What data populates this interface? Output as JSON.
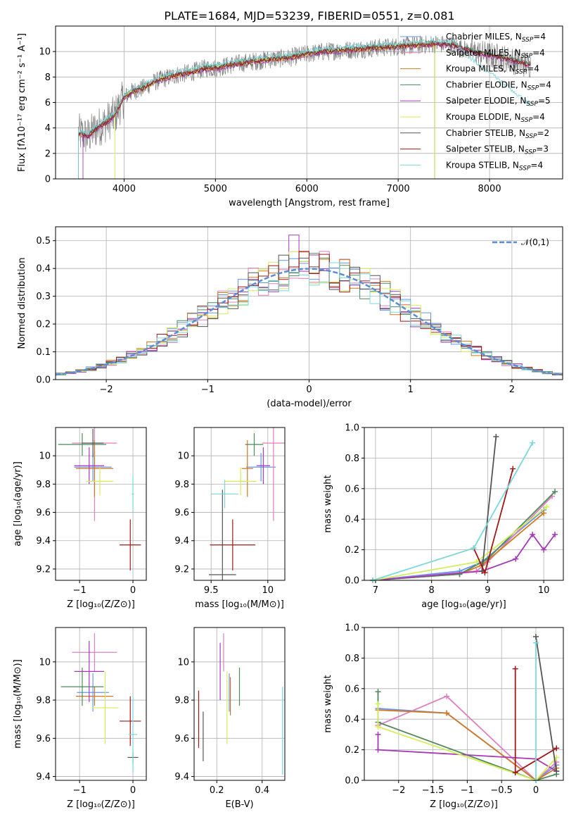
{
  "title": "PLATE=1684, MJD=53239, FIBERID=0551, z=0.081",
  "colors": [
    "#6495ed",
    "#e07fc0",
    "#d2771f",
    "#4e8a5a",
    "#a43ab8",
    "#d4ee5a",
    "#555555",
    "#a01818",
    "#7ad8da"
  ],
  "chart_data": [
    {
      "type": "line",
      "xlabel": "wavelength [Angstrom, rest frame]",
      "ylabel": "Flux [fλ10⁻¹⁷ erg cm⁻² s⁻¹ A⁻¹]",
      "xlim": [
        3250,
        8800
      ],
      "ylim": [
        0,
        12
      ],
      "xticks": [
        4000,
        5000,
        6000,
        7000,
        8000
      ],
      "yticks": [
        0,
        2,
        4,
        6,
        8,
        10
      ],
      "spectrum": {
        "x": [
          3500,
          3600,
          3700,
          3800,
          3900,
          4000,
          4100,
          4200,
          4300,
          4400,
          4500,
          4600,
          4700,
          4800,
          4900,
          5000,
          5200,
          5400,
          5600,
          5800,
          6000,
          6200,
          6400,
          6600,
          6800,
          7000,
          7200,
          7400,
          7600,
          7800,
          8000,
          8200,
          8400
        ],
        "y": [
          3.6,
          3.3,
          4.0,
          4.4,
          5.0,
          6.4,
          6.9,
          7.1,
          7.5,
          7.8,
          8.0,
          8.2,
          8.3,
          8.5,
          8.7,
          8.7,
          9.0,
          9.2,
          9.4,
          9.5,
          9.8,
          10.0,
          10.1,
          10.2,
          10.3,
          10.4,
          10.5,
          10.6,
          10.5,
          10.0,
          9.7,
          9.4,
          9.0
        ]
      },
      "series": [
        {
          "name": "Chabrier MILES, N_SSP=4",
          "label_main": "Chabrier MILES, N",
          "label_sub": "SSP",
          "label_end": "=4"
        },
        {
          "name": "Salpeter MILES, N_SSP=4",
          "label_main": "Salpeter MILES, N",
          "label_sub": "SSP",
          "label_end": "=4"
        },
        {
          "name": "Kroupa MILES, N_SSP=4",
          "label_main": "Kroupa MILES, N",
          "label_sub": "SSP",
          "label_end": "=4"
        },
        {
          "name": "Chabrier ELODIE, N_SSP=4",
          "label_main": "Chabrier ELODIE, N",
          "label_sub": "SSP",
          "label_end": "=4"
        },
        {
          "name": "Salpeter ELODIE, N_SSP=5",
          "label_main": "Salpeter ELODIE, N",
          "label_sub": "SSP",
          "label_end": "=5"
        },
        {
          "name": "Kroupa ELODIE, N_SSP=4",
          "label_main": "Kroupa ELODIE, N",
          "label_sub": "SSP",
          "label_end": "=4"
        },
        {
          "name": "Chabrier STELIB, N_SSP=2",
          "label_main": "Chabrier STELIB, N",
          "label_sub": "SSP",
          "label_end": "=2"
        },
        {
          "name": "Salpeter STELIB, N_SSP=3",
          "label_main": "Salpeter STELIB, N",
          "label_sub": "SSP",
          "label_end": "=3"
        },
        {
          "name": "Kroupa STELIB, N_SSP=4",
          "label_main": "Kroupa STELIB, N",
          "label_sub": "SSP",
          "label_end": "=4"
        }
      ]
    },
    {
      "type": "step",
      "xlabel": "(data-model)/error",
      "ylabel": "Normed distribution",
      "xlim": [
        -2.5,
        2.5
      ],
      "ylim": [
        0,
        0.55
      ],
      "xticks": [
        -2,
        -1,
        0,
        1,
        2
      ],
      "yticks": [
        0.0,
        0.1,
        0.2,
        0.3,
        0.4,
        0.5
      ],
      "legend": "𝒩(0,1)",
      "bin_width": 0.1
    },
    {
      "type": "errorbar",
      "xlabel": "Z [log₁₀(Z/Z⊙)]",
      "ylabel": "age  [log₁₀(age/yr)]",
      "xlim": [
        -1.45,
        0.25
      ],
      "ylim": [
        9.12,
        10.2
      ],
      "xticks": [
        -1,
        0
      ],
      "yticks": [
        9.2,
        9.4,
        9.6,
        9.8,
        10.0
      ],
      "points": [
        {
          "x": -0.75,
          "xerr": 0.35,
          "y": 9.92,
          "yerr": 0.1
        },
        {
          "x": -0.72,
          "xerr": 0.42,
          "y": 10.09,
          "yerr": 0.55
        },
        {
          "x": -0.72,
          "xerr": 0.35,
          "y": 9.91,
          "yerr": 0.2
        },
        {
          "x": -0.95,
          "xerr": 0.45,
          "y": 10.08,
          "yerr": 0.08
        },
        {
          "x": -0.82,
          "xerr": 0.28,
          "y": 9.93,
          "yerr": 0.13
        },
        {
          "x": -0.62,
          "xerr": 0.25,
          "y": 9.82,
          "yerr": 0.1
        },
        {
          "x": -0.75,
          "xerr": 0.2,
          "y": 10.09,
          "yerr": 0.1
        },
        {
          "x": -0.05,
          "xerr": 0.2,
          "y": 9.37,
          "yerr": 0.18
        },
        {
          "x": 0.0,
          "xerr": 0.02,
          "y": 9.73,
          "yerr": 0.13
        }
      ]
    },
    {
      "type": "errorbar",
      "xlabel": "mass [log₁₀(M/M⊙)]",
      "ylabel": "",
      "xlim": [
        9.35,
        10.15
      ],
      "ylim": [
        9.12,
        10.2
      ],
      "xticks": [
        9.5,
        10.0
      ],
      "yticks": [
        9.2,
        9.4,
        9.6,
        9.8,
        10.0
      ],
      "points": [
        {
          "x": 9.94,
          "xerr": 0.13,
          "y": 9.92,
          "yerr": 0.1
        },
        {
          "x": 10.05,
          "xerr": 0.1,
          "y": 10.09,
          "yerr": 0.55
        },
        {
          "x": 9.82,
          "xerr": 0.05,
          "y": 9.91,
          "yerr": 0.2
        },
        {
          "x": 9.88,
          "xerr": 0.08,
          "y": 10.08,
          "yerr": 0.08
        },
        {
          "x": 9.96,
          "xerr": 0.06,
          "y": 9.93,
          "yerr": 0.13
        },
        {
          "x": 9.76,
          "xerr": 0.14,
          "y": 9.82,
          "yerr": 0.1
        },
        {
          "x": 9.6,
          "xerr": 0.12,
          "y": 9.16,
          "yerr": 0.6
        },
        {
          "x": 9.69,
          "xerr": 0.2,
          "y": 9.37,
          "yerr": 0.18
        },
        {
          "x": 9.62,
          "xerr": 0.12,
          "y": 9.73,
          "yerr": 0.1
        }
      ]
    },
    {
      "type": "line",
      "xlabel": "age  [log₁₀(age/yr)]",
      "ylabel": "mass weight",
      "xlim": [
        6.8,
        10.35
      ],
      "ylim": [
        0,
        1
      ],
      "xticks": [
        7,
        8,
        9,
        10
      ],
      "yticks": [
        0.0,
        0.2,
        0.4,
        0.6,
        0.8,
        1.0
      ],
      "series": [
        {
          "x": [
            6.95,
            8.5,
            8.9,
            10.0
          ],
          "y": [
            0.0,
            0.06,
            0.12,
            0.46
          ]
        },
        {
          "x": [
            6.95,
            8.8,
            9.0,
            10.15
          ],
          "y": [
            0.0,
            0.06,
            0.12,
            0.55
          ]
        },
        {
          "x": [
            6.95,
            8.5,
            8.9,
            10.0
          ],
          "y": [
            0.0,
            0.04,
            0.1,
            0.44
          ]
        },
        {
          "x": [
            6.95,
            8.5,
            9.0,
            10.2
          ],
          "y": [
            0.0,
            0.04,
            0.14,
            0.58
          ]
        },
        {
          "x": [
            6.95,
            8.9,
            9.5,
            9.8,
            10.0,
            10.2
          ],
          "y": [
            0.0,
            0.06,
            0.14,
            0.3,
            0.2,
            0.3
          ]
        },
        {
          "x": [
            6.95,
            8.8,
            10.05
          ],
          "y": [
            0.0,
            0.12,
            0.48
          ]
        },
        {
          "x": [
            8.9,
            9.15
          ],
          "y": [
            0.06,
            0.94
          ]
        },
        {
          "x": [
            8.75,
            8.95,
            9.45
          ],
          "y": [
            0.21,
            0.05,
            0.73
          ]
        },
        {
          "x": [
            6.95,
            8.75,
            9.8
          ],
          "y": [
            0.0,
            0.21,
            0.9
          ]
        }
      ]
    },
    {
      "type": "errorbar",
      "xlabel": "Z [log₁₀(Z/Z⊙)]",
      "ylabel": "mass [log₁₀(M/M⊙)]",
      "xlim": [
        -1.45,
        0.25
      ],
      "ylim": [
        9.38,
        10.18
      ],
      "xticks": [
        -1,
        0
      ],
      "yticks": [
        9.4,
        9.6,
        9.8,
        10.0
      ],
      "points": [
        {
          "x": -0.75,
          "xerr": 0.3,
          "y": 9.84,
          "yerr": 0.1
        },
        {
          "x": -0.72,
          "xerr": 0.42,
          "y": 10.05,
          "yerr": 0.1
        },
        {
          "x": -0.72,
          "xerr": 0.35,
          "y": 9.82,
          "yerr": 0.05
        },
        {
          "x": -0.95,
          "xerr": 0.4,
          "y": 9.87,
          "yerr": 0.1
        },
        {
          "x": -0.82,
          "xerr": 0.28,
          "y": 9.95,
          "yerr": 0.16
        },
        {
          "x": -0.52,
          "xerr": 0.25,
          "y": 9.76,
          "yerr": 0.19
        },
        {
          "x": 0.0,
          "xerr": 0.1,
          "y": 9.5,
          "yerr": 0.03
        },
        {
          "x": -0.05,
          "xerr": 0.2,
          "y": 9.69,
          "yerr": 0.13
        },
        {
          "x": 0.0,
          "xerr": 0.08,
          "y": 9.62,
          "yerr": 0.2
        }
      ]
    },
    {
      "type": "errorbar",
      "xlabel": "E(B-V)",
      "ylabel": "",
      "xlim": [
        0.1,
        0.5
      ],
      "ylim": [
        9.38,
        10.18
      ],
      "xticks": [
        0.2,
        0.4
      ],
      "yticks": [
        9.4,
        9.6,
        9.8,
        10.0
      ],
      "points": [
        {
          "x": 0.255,
          "xerr": 0.0,
          "y": 9.84,
          "yerr": 0.1
        },
        {
          "x": 0.23,
          "xerr": 0.0,
          "y": 10.05,
          "yerr": 0.1
        },
        {
          "x": 0.26,
          "xerr": 0.0,
          "y": 9.82,
          "yerr": 0.1
        },
        {
          "x": 0.3,
          "xerr": 0.0,
          "y": 9.87,
          "yerr": 0.1
        },
        {
          "x": 0.215,
          "xerr": 0.0,
          "y": 9.95,
          "yerr": 0.15
        },
        {
          "x": 0.245,
          "xerr": 0.0,
          "y": 9.76,
          "yerr": 0.19
        },
        {
          "x": 0.14,
          "xerr": 0.0,
          "y": 9.61,
          "yerr": 0.13
        },
        {
          "x": 0.12,
          "xerr": 0.0,
          "y": 9.7,
          "yerr": 0.15
        },
        {
          "x": 0.49,
          "xerr": 0.0,
          "y": 9.64,
          "yerr": 0.23
        }
      ]
    },
    {
      "type": "line",
      "xlabel": "Z [log₁₀(Z/Z⊙)]",
      "ylabel": "mass weight",
      "xlim": [
        -2.5,
        0.4
      ],
      "ylim": [
        0,
        1
      ],
      "xticks": [
        -2.0,
        -1.5,
        -1.0,
        -0.5,
        0.0
      ],
      "yticks": [
        0.0,
        0.2,
        0.4,
        0.6,
        0.8,
        1.0
      ],
      "series": [
        {
          "x": [
            -2.3,
            -1.3,
            0.0,
            0.3
          ],
          "y": [
            0.47,
            0.44,
            0.0,
            0.1
          ]
        },
        {
          "x": [
            -2.3,
            -1.3,
            0.0,
            0.3
          ],
          "y": [
            0.36,
            0.55,
            0.0,
            0.12
          ]
        },
        {
          "x": [
            -2.3,
            -1.3,
            0.0,
            0.3
          ],
          "y": [
            0.46,
            0.44,
            0.0,
            0.08
          ]
        },
        {
          "x": [
            -2.3,
            -2.3,
            0.0,
            0.3
          ],
          "y": [
            0.58,
            0.38,
            0.0,
            0.04
          ]
        },
        {
          "x": [
            -2.3,
            -2.3,
            0.0,
            0.3
          ],
          "y": [
            0.3,
            0.2,
            0.14,
            0.06
          ]
        },
        {
          "x": [
            -2.3,
            -2.3,
            0.0,
            0.3
          ],
          "y": [
            0.5,
            0.35,
            0.0,
            0.15
          ]
        },
        {
          "x": [
            0.0,
            0.3
          ],
          "y": [
            0.94,
            0.06
          ]
        },
        {
          "x": [
            -0.3,
            -0.3,
            0.3
          ],
          "y": [
            0.73,
            0.05,
            0.21
          ]
        },
        {
          "x": [
            0.0,
            0.0
          ],
          "y": [
            0.9,
            0.0
          ]
        }
      ]
    }
  ]
}
